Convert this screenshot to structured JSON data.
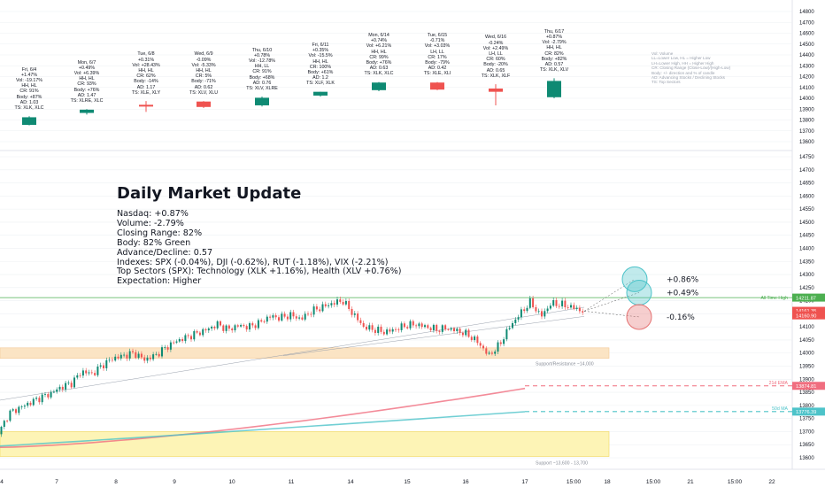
{
  "colors": {
    "up": "#0f8a73",
    "down": "#ef5350",
    "ema21": "#f06e7f",
    "ma50": "#4dc3c9",
    "ath": "#4caf50",
    "grid": "#eef0f3",
    "axis_text": "#131722",
    "up_circle": "#4dc3c9",
    "down_circle": "#e57373"
  },
  "headline": {
    "title": "Daily Market Update",
    "lines": [
      "Nasdaq: +0.87%",
      "Volume: -2.79%",
      "Closing Range: 82%",
      "Body: 82% Green",
      "Advance/Decline: 0.57",
      "Indexes: SPX (-0.04%), DJI (-0.62%), RUT (-1.18%), VIX (-2.21%)",
      "Top Sectors (SPX): Technology (XLK +1.16%), Health (XLV +0.76%)",
      "Expectation: Higher"
    ]
  },
  "legend_lines": [
    "Vol: Volume",
    "LL=Lower Low, HL = Higher Low",
    "LH=Lower High, HH = Higher High",
    "CR: Closing Range (Close-Low)/(High-Low)",
    "Body: +/- direction and % of candle",
    "AD: Advancing Stocks / Declining Stocks",
    "TS: Top Sectors"
  ],
  "day_cards": [
    {
      "lines": [
        "Fri, 6/4",
        "+1.47%",
        "Vol: -19.17%",
        "HH, HL",
        "CR: 91%",
        "Body: +87%",
        "AD: 1.03",
        "TS: XLK, XLC"
      ],
      "o": 13755,
      "h": 13835,
      "l": 13750,
      "c": 13825
    },
    {
      "lines": [
        "Mon, 6/7",
        "+0.49%",
        "Vol: +6.39%",
        "HH, HL",
        "CR: 93%",
        "Body: +76%",
        "AD: 1.47",
        "TS: XLRE, XLC"
      ],
      "o": 13865,
      "h": 13900,
      "l": 13850,
      "c": 13895
    },
    {
      "lines": [
        "Tue, 6/8",
        "+0.31%",
        "Vol: +28.43%",
        "HH, HL",
        "CR: 62%",
        "Body: -14%",
        "AD: 1.17",
        "TS: XLE, XLY"
      ],
      "o": 13940,
      "h": 13975,
      "l": 13875,
      "c": 13930
    },
    {
      "lines": [
        "Wed, 6/9",
        "-0.09%",
        "Vol: -5.33%",
        "HH, HL",
        "CR: 5%",
        "Body: -71%",
        "AD: 0.62",
        "TS: XLV, XLU"
      ],
      "o": 13970,
      "h": 13975,
      "l": 13910,
      "c": 13920
    },
    {
      "lines": [
        "Thu, 6/10",
        "+0.78%",
        "Vol: -12.78%",
        "HH, LL",
        "CR: 91%",
        "Body: +68%",
        "AD: 0.76",
        "TS: XLV, XLRE"
      ],
      "o": 13935,
      "h": 14015,
      "l": 13925,
      "c": 14005
    },
    {
      "lines": [
        "Fri, 6/11",
        "+0.35%",
        "Vol: -15.5%",
        "HH, HL",
        "CR: 100%",
        "Body: +61%",
        "AD: 1.2",
        "TS: XLF, XLK"
      ],
      "o": 14025,
      "h": 14060,
      "l": 14015,
      "c": 14060
    },
    {
      "lines": [
        "Mon, 6/14",
        "+0.74%",
        "Vol: +6.21%",
        "HH, HL",
        "CR: 99%",
        "Body: +76%",
        "AD: 0.63",
        "TS: XLK, XLC"
      ],
      "o": 14075,
      "h": 14150,
      "l": 14065,
      "c": 14145
    },
    {
      "lines": [
        "Tue, 6/15",
        "-0.71%",
        "Vol: +3.03%",
        "LH, LL",
        "CR: 17%",
        "Body: -79%",
        "AD: 0.42",
        "TS: XLE, XLI"
      ],
      "o": 14145,
      "h": 14150,
      "l": 14075,
      "c": 14080
    },
    {
      "lines": [
        "Wed, 6/16",
        "-0.24%",
        "Vol: +2.49%",
        "LH, LL",
        "CR: 60%",
        "Body: -20%",
        "AD: 0.65",
        "TS: XLK, XLF"
      ],
      "o": 14090,
      "h": 14130,
      "l": 13935,
      "c": 14060
    },
    {
      "lines": [
        "Thu, 6/17",
        "+0.87%",
        "Vol: -2.79%",
        "HH, HL",
        "CR: 82%",
        "Body: +82%",
        "AD: 0.57",
        "TS: XLK, XLV"
      ],
      "o": 14010,
      "h": 14185,
      "l": 14000,
      "c": 14160
    }
  ],
  "chart_data": [
    {
      "type": "candlestick",
      "panel": "daily",
      "x": [
        "6/4",
        "6/7",
        "6/8",
        "6/9",
        "6/10",
        "6/11",
        "6/14",
        "6/15",
        "6/16",
        "6/17"
      ],
      "ohlc_note": "open/high/low/close per session in day_cards",
      "y_ticks": [
        13600,
        13700,
        13800,
        13900,
        14000,
        14100,
        14200,
        14300,
        14400,
        14500,
        14600,
        14700,
        14800
      ]
    },
    {
      "type": "candlestick",
      "panel": "intraday",
      "x_ticks": [
        "4",
        "7",
        "8",
        "9",
        "10",
        "11",
        "14",
        "15",
        "16",
        "17",
        "15:00",
        "18",
        "15:00",
        "21",
        "15:00",
        "22"
      ],
      "y_ticks": [
        13600,
        13650,
        13700,
        13750,
        13800,
        13850,
        13900,
        13950,
        14000,
        14050,
        14100,
        14150,
        14200,
        14250,
        14300,
        14350,
        14400,
        14450,
        14500,
        14550,
        14600,
        14650,
        14700,
        14750
      ],
      "path": [
        [
          0,
          13690
        ],
        [
          0.5,
          13770
        ],
        [
          1,
          13790
        ],
        [
          1.5,
          13810
        ],
        [
          2,
          13830
        ],
        [
          2.5,
          13845
        ],
        [
          3,
          13870
        ],
        [
          3.5,
          13885
        ],
        [
          4,
          13930
        ],
        [
          4.5,
          13920
        ],
        [
          5,
          13955
        ],
        [
          5.5,
          13980
        ],
        [
          6,
          13990
        ],
        [
          6.5,
          14000
        ],
        [
          7,
          13975
        ],
        [
          7.5,
          13990
        ],
        [
          8,
          14020
        ],
        [
          8.5,
          14045
        ],
        [
          9,
          14060
        ],
        [
          9.5,
          14075
        ],
        [
          10,
          14090
        ],
        [
          10.5,
          14110
        ],
        [
          11,
          14090
        ],
        [
          11.5,
          14105
        ],
        [
          12,
          14100
        ],
        [
          12.5,
          14115
        ],
        [
          13,
          14140
        ],
        [
          13.5,
          14135
        ],
        [
          14,
          14145
        ],
        [
          14.5,
          14130
        ],
        [
          15,
          14160
        ],
        [
          15.5,
          14175
        ],
        [
          16,
          14190
        ],
        [
          16.5,
          14200
        ],
        [
          17,
          14150
        ],
        [
          17.5,
          14100
        ],
        [
          18,
          14090
        ],
        [
          18.5,
          14080
        ],
        [
          19,
          14090
        ],
        [
          19.5,
          14105
        ],
        [
          20,
          14110
        ],
        [
          20.5,
          14100
        ],
        [
          21,
          14090
        ],
        [
          21.5,
          14095
        ],
        [
          22,
          14085
        ],
        [
          22.5,
          14070
        ],
        [
          23,
          14040
        ],
        [
          23.5,
          13990
        ],
        [
          24,
          14030
        ],
        [
          24.5,
          14100
        ],
        [
          25,
          14150
        ],
        [
          25.5,
          14195
        ],
        [
          26,
          14140
        ],
        [
          26.5,
          14190
        ],
        [
          27,
          14185
        ],
        [
          27.5,
          14175
        ],
        [
          28,
          14160
        ]
      ],
      "levels": [
        {
          "name": "All Time High",
          "value": 14211.87,
          "color": "#4caf50"
        },
        {
          "name": "21d EMA",
          "value": 13874.81,
          "color": "#f06e7f"
        },
        {
          "name": "50d MA",
          "value": 13776.39,
          "color": "#4dc3c9"
        }
      ],
      "price_tags": [
        14211.87,
        14161.35,
        14160.9
      ],
      "zones": [
        {
          "label": "Support/Resistance ~14,000",
          "from": 13980,
          "to": 14020,
          "color": "#fbe4c4"
        },
        {
          "label": "Support ~13,600 - 13,700",
          "from": 13605,
          "to": 13700,
          "color": "#fdf4b6"
        }
      ],
      "projections": [
        {
          "label": "+0.86%",
          "value": 14282,
          "dir": "up"
        },
        {
          "label": "+0.49%",
          "value": 14231,
          "dir": "up"
        },
        {
          "label": "-0.16%",
          "value": 14138,
          "dir": "down"
        }
      ]
    }
  ]
}
